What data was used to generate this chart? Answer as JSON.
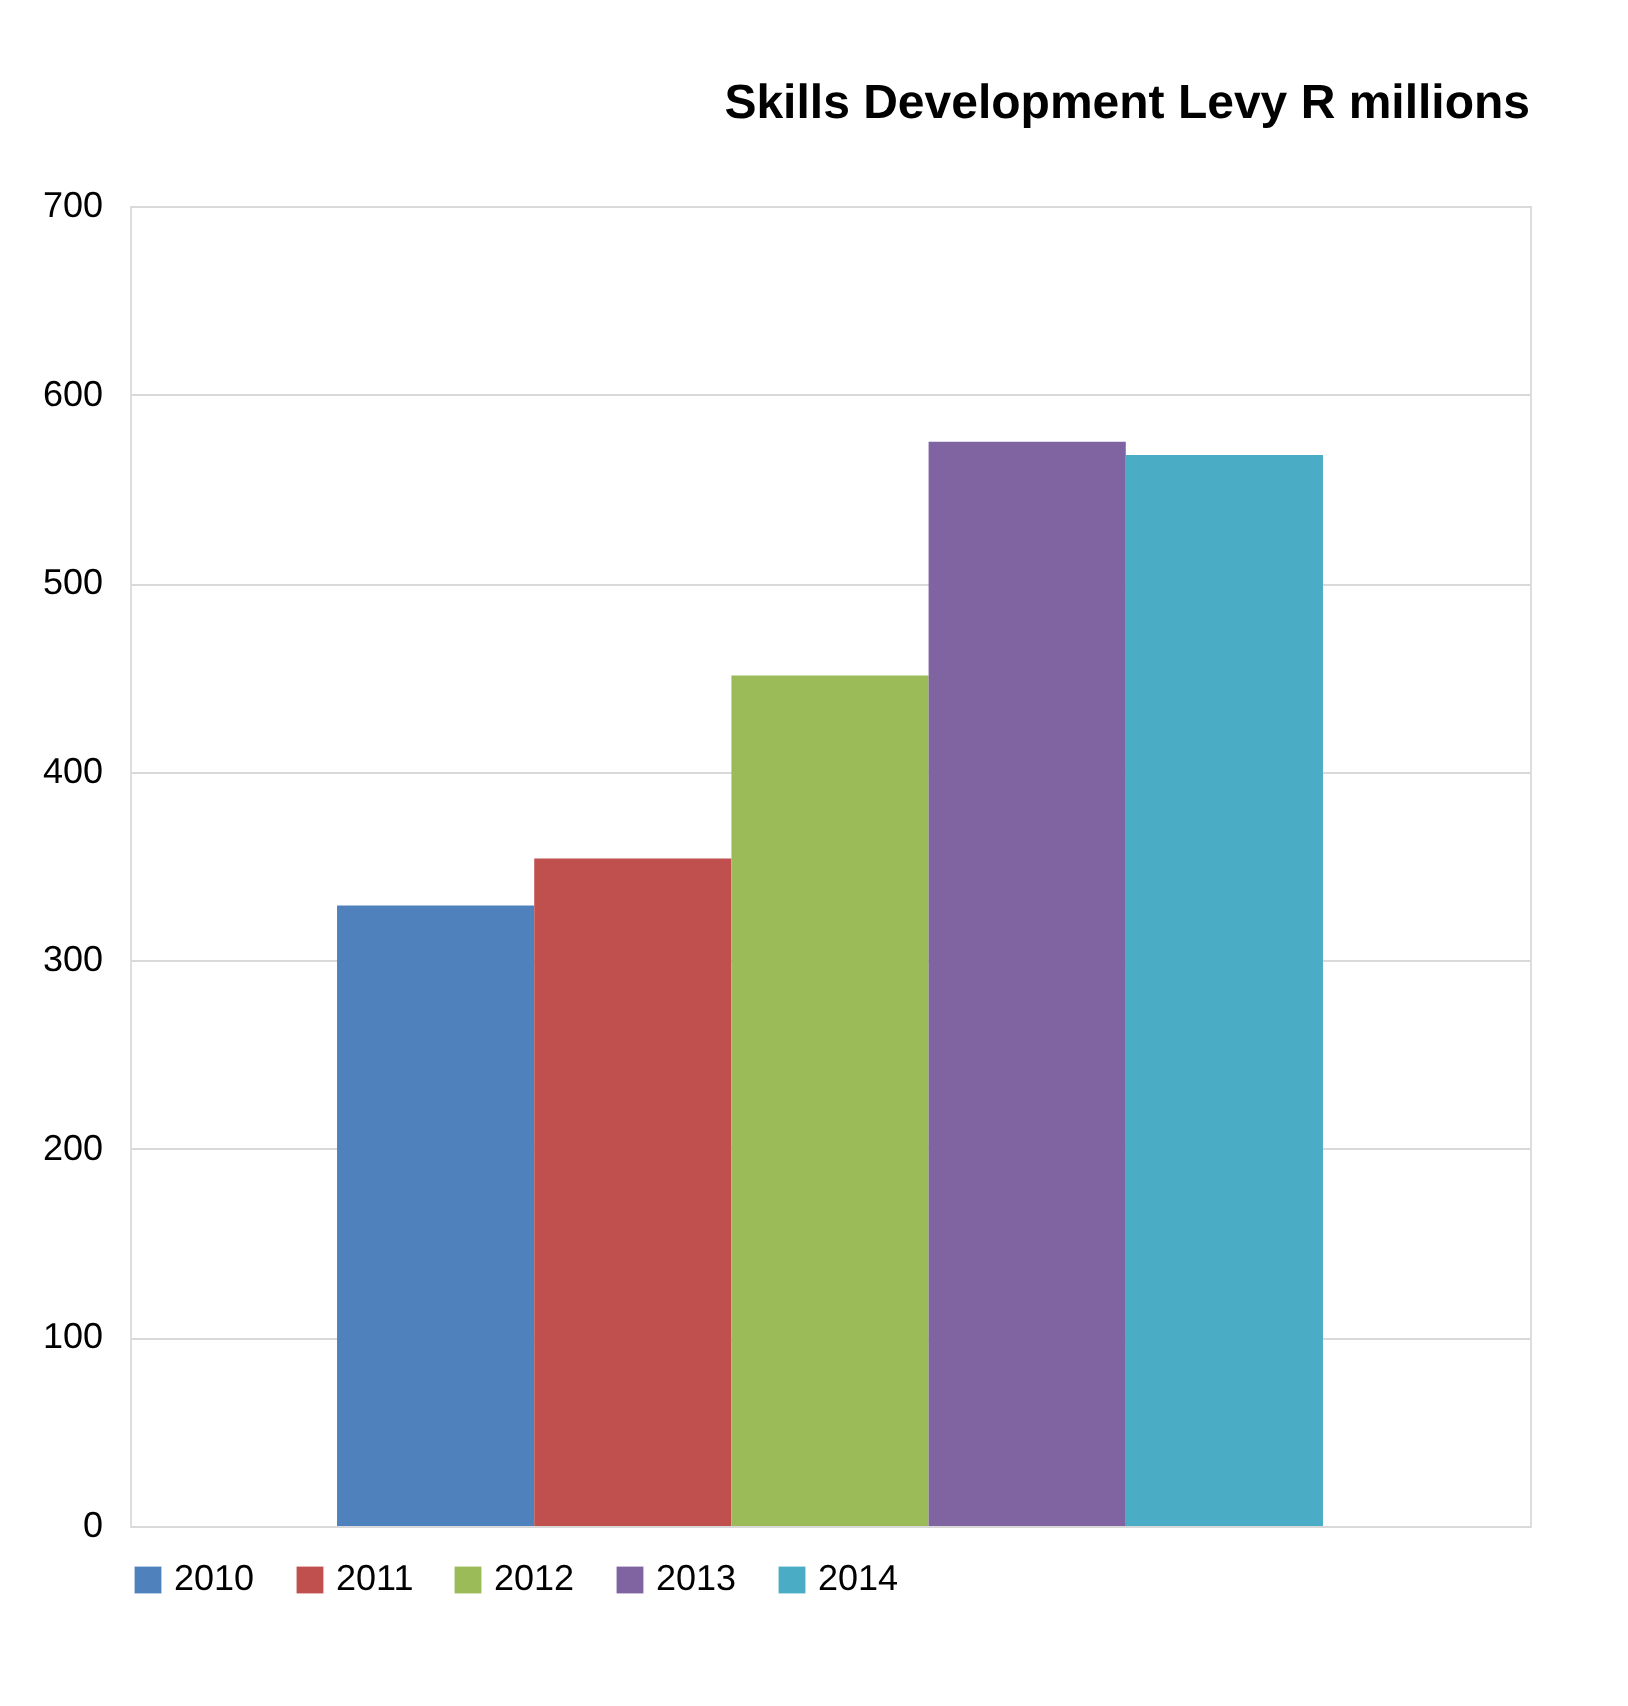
{
  "chart_data": {
    "type": "bar",
    "title": "Skills Development Levy R millions",
    "categories": [
      null
    ],
    "series": [
      {
        "name": "2010",
        "color": "#4f81bd",
        "values": [
          329
        ]
      },
      {
        "name": "2011",
        "color": "#c0504d",
        "values": [
          354
        ]
      },
      {
        "name": "2012",
        "color": "#9bbb59",
        "values": [
          451
        ]
      },
      {
        "name": "2013",
        "color": "#8064a2",
        "values": [
          575
        ]
      },
      {
        "name": "2014",
        "color": "#4bacc6",
        "values": [
          568
        ]
      }
    ],
    "ylim": [
      0,
      700
    ],
    "yticks": [
      0,
      100,
      200,
      300,
      400,
      500,
      600,
      700
    ],
    "grid": "y",
    "legend": "bottom"
  }
}
